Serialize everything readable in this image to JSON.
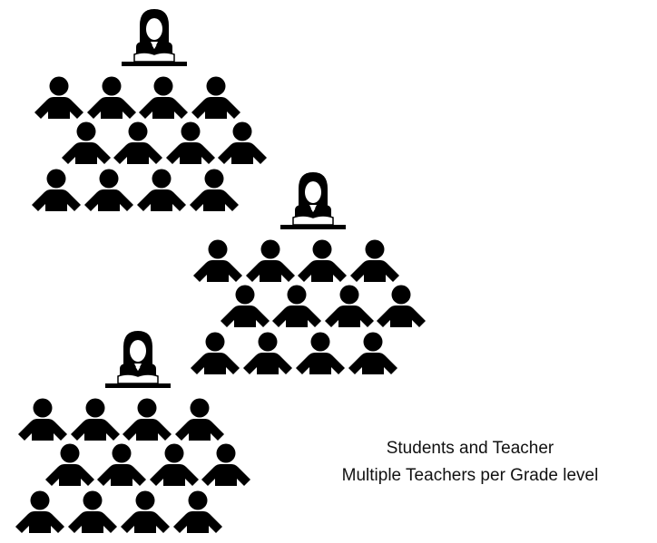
{
  "caption": {
    "line1": "Students and Teacher",
    "line2": "Multiple Teachers per Grade level"
  }
}
